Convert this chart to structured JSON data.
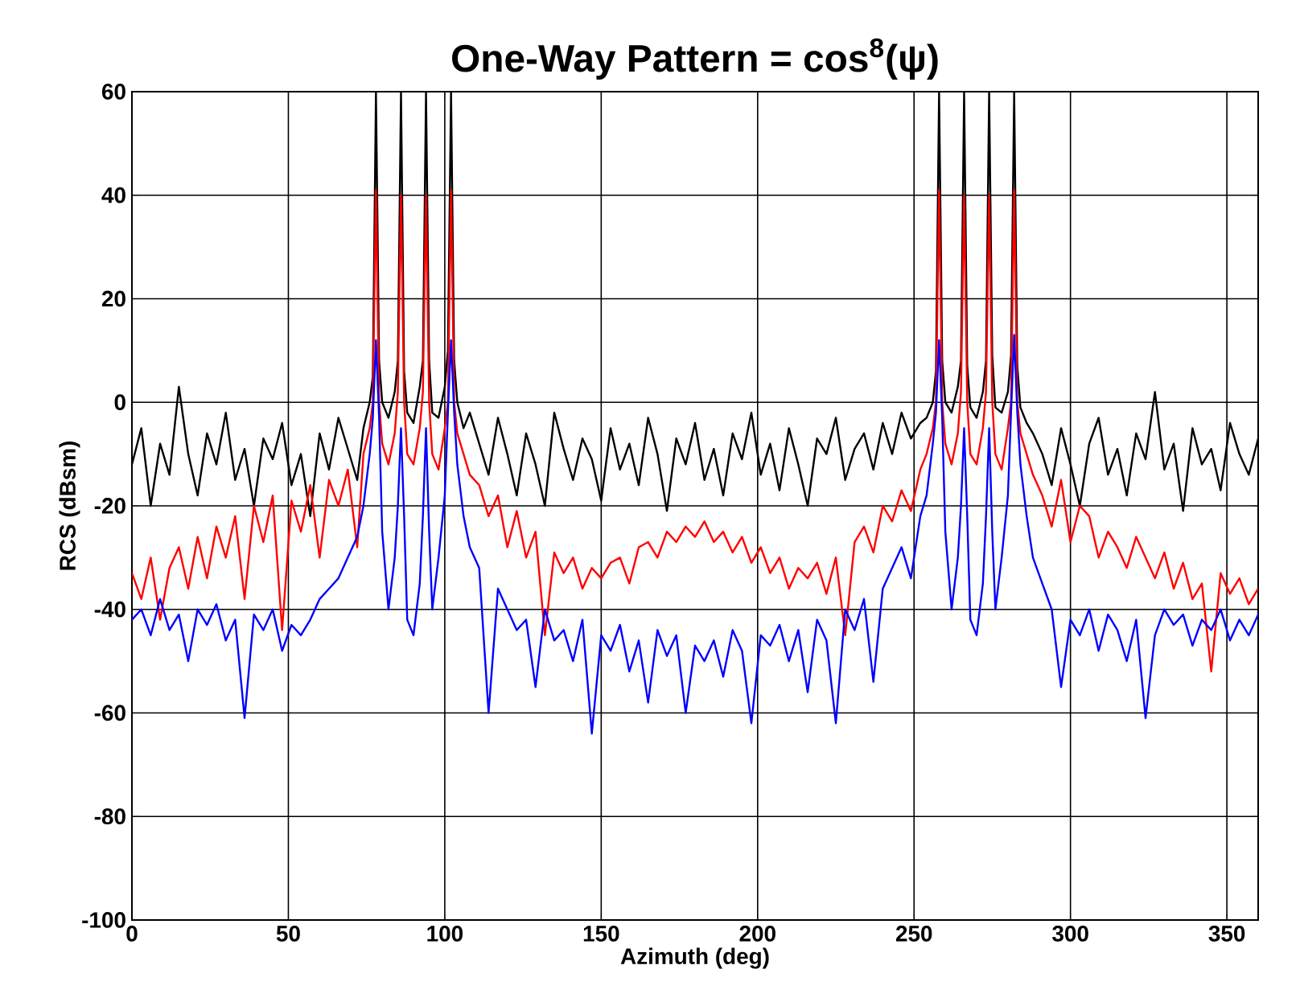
{
  "chart_data": {
    "type": "line",
    "title": "One-Way Pattern = cos$^{8}$(ψ)",
    "xlabel": "Azimuth (deg)",
    "ylabel": "RCS (dBsm)",
    "x": [
      0,
      3,
      6,
      9,
      12,
      15,
      18,
      21,
      24,
      27,
      30,
      33,
      36,
      39,
      42,
      45,
      48,
      51,
      54,
      57,
      60,
      63,
      66,
      69,
      72,
      74,
      76,
      77,
      78,
      79,
      80,
      82,
      84,
      85,
      86,
      87,
      88,
      90,
      92,
      93,
      94,
      95,
      96,
      98,
      100,
      101,
      102,
      103,
      104,
      106,
      108,
      111,
      114,
      117,
      120,
      123,
      126,
      129,
      132,
      135,
      138,
      141,
      144,
      147,
      150,
      153,
      156,
      159,
      162,
      165,
      168,
      171,
      174,
      177,
      180,
      183,
      186,
      189,
      192,
      195,
      198,
      201,
      204,
      207,
      210,
      213,
      216,
      219,
      222,
      225,
      228,
      231,
      234,
      237,
      240,
      243,
      246,
      249,
      252,
      254,
      256,
      257,
      258,
      259,
      260,
      262,
      264,
      265,
      266,
      267,
      268,
      270,
      272,
      273,
      274,
      275,
      276,
      278,
      280,
      281,
      282,
      283,
      284,
      286,
      288,
      291,
      294,
      297,
      300,
      303,
      306,
      309,
      312,
      315,
      318,
      321,
      324,
      327,
      330,
      333,
      336,
      339,
      342,
      345,
      348,
      351,
      354,
      357,
      360
    ],
    "series": [
      {
        "color": "#000000",
        "values": [
          -12,
          -5,
          -20,
          -8,
          -14,
          3,
          -10,
          -18,
          -6,
          -12,
          -2,
          -15,
          -9,
          -20,
          -7,
          -11,
          -4,
          -16,
          -10,
          -22,
          -6,
          -13,
          -3,
          -9,
          -15,
          -5,
          0,
          5,
          60,
          8,
          0,
          -3,
          2,
          8,
          60,
          6,
          -2,
          -4,
          3,
          8,
          60,
          8,
          -2,
          -3,
          3,
          10,
          60,
          8,
          0,
          -5,
          -2,
          -8,
          -14,
          -3,
          -10,
          -18,
          -6,
          -12,
          -20,
          -2,
          -9,
          -15,
          -7,
          -11,
          -19,
          -5,
          -13,
          -8,
          -16,
          -3,
          -10,
          -21,
          -7,
          -12,
          -4,
          -15,
          -9,
          -18,
          -6,
          -11,
          -2,
          -14,
          -8,
          -17,
          -5,
          -12,
          -20,
          -7,
          -10,
          -3,
          -15,
          -9,
          -6,
          -13,
          -4,
          -10,
          -2,
          -7,
          -4,
          -3,
          0,
          6,
          60,
          8,
          0,
          -2,
          3,
          8,
          60,
          7,
          -1,
          -3,
          2,
          8,
          60,
          9,
          -1,
          -2,
          2,
          9,
          60,
          7,
          -1,
          -4,
          -6,
          -10,
          -16,
          -5,
          -12,
          -20,
          -8,
          -3,
          -14,
          -9,
          -18,
          -6,
          -11,
          2,
          -13,
          -8,
          -21,
          -5,
          -12,
          -9,
          -17,
          -4,
          -10,
          -14,
          -7
        ]
      },
      {
        "color": "#ff0000",
        "values": [
          -33,
          -38,
          -30,
          -42,
          -32,
          -28,
          -36,
          -26,
          -34,
          -24,
          -30,
          -22,
          -38,
          -20,
          -27,
          -18,
          -44,
          -19,
          -25,
          -16,
          -30,
          -15,
          -20,
          -13,
          -28,
          -10,
          -5,
          0,
          41,
          0,
          -8,
          -12,
          -6,
          2,
          40,
          0,
          -10,
          -12,
          -5,
          2,
          40,
          0,
          -10,
          -13,
          -5,
          0,
          41,
          0,
          -6,
          -10,
          -14,
          -16,
          -22,
          -18,
          -28,
          -21,
          -30,
          -25,
          -45,
          -29,
          -33,
          -30,
          -36,
          -32,
          -34,
          -31,
          -30,
          -35,
          -28,
          -27,
          -30,
          -25,
          -27,
          -24,
          -26,
          -23,
          -27,
          -25,
          -29,
          -26,
          -31,
          -28,
          -33,
          -30,
          -36,
          -32,
          -34,
          -31,
          -37,
          -30,
          -45,
          -27,
          -24,
          -29,
          -20,
          -23,
          -17,
          -21,
          -13,
          -10,
          -5,
          0,
          41,
          0,
          -8,
          -12,
          -6,
          2,
          40,
          0,
          -10,
          -12,
          -5,
          2,
          40,
          0,
          -10,
          -13,
          -5,
          0,
          41,
          0,
          -6,
          -10,
          -14,
          -18,
          -24,
          -15,
          -27,
          -20,
          -22,
          -30,
          -25,
          -28,
          -32,
          -26,
          -30,
          -34,
          -29,
          -36,
          -31,
          -38,
          -35,
          -52,
          -33,
          -37,
          -34,
          -39,
          -36
        ]
      },
      {
        "color": "#0000ff",
        "values": [
          -42,
          -40,
          -45,
          -38,
          -44,
          -41,
          -50,
          -40,
          -43,
          -39,
          -46,
          -42,
          -61,
          -41,
          -44,
          -40,
          -48,
          -43,
          -45,
          -42,
          -38,
          -36,
          -34,
          -30,
          -26,
          -20,
          -10,
          -3,
          12,
          -3,
          -25,
          -40,
          -30,
          -20,
          -5,
          -22,
          -42,
          -45,
          -35,
          -22,
          -5,
          -25,
          -40,
          -30,
          -18,
          -2,
          12,
          -2,
          -12,
          -22,
          -28,
          -32,
          -60,
          -36,
          -40,
          -44,
          -42,
          -55,
          -40,
          -46,
          -44,
          -50,
          -42,
          -64,
          -45,
          -48,
          -43,
          -52,
          -46,
          -58,
          -44,
          -49,
          -45,
          -60,
          -47,
          -50,
          -46,
          -53,
          -44,
          -48,
          -62,
          -45,
          -47,
          -43,
          -50,
          -44,
          -56,
          -42,
          -46,
          -62,
          -40,
          -44,
          -38,
          -54,
          -36,
          -32,
          -28,
          -34,
          -22,
          -18,
          -8,
          -2,
          12,
          -3,
          -25,
          -40,
          -30,
          -20,
          -5,
          -22,
          -42,
          -45,
          -35,
          -22,
          -5,
          -25,
          -40,
          -30,
          -18,
          -2,
          13,
          -2,
          -12,
          -22,
          -30,
          -35,
          -40,
          -55,
          -42,
          -45,
          -40,
          -48,
          -41,
          -44,
          -50,
          -42,
          -61,
          -45,
          -40,
          -43,
          -41,
          -47,
          -42,
          -44,
          -40,
          -46,
          -42,
          -45,
          -41
        ]
      }
    ],
    "xlim": [
      0,
      360
    ],
    "ylim": [
      -100,
      60
    ],
    "xticks": [
      0,
      50,
      100,
      150,
      200,
      250,
      300,
      350
    ],
    "yticks": [
      -100,
      -80,
      -60,
      -40,
      -20,
      0,
      20,
      40,
      60
    ],
    "grid": true,
    "marker": "none",
    "line_style": "solid"
  }
}
